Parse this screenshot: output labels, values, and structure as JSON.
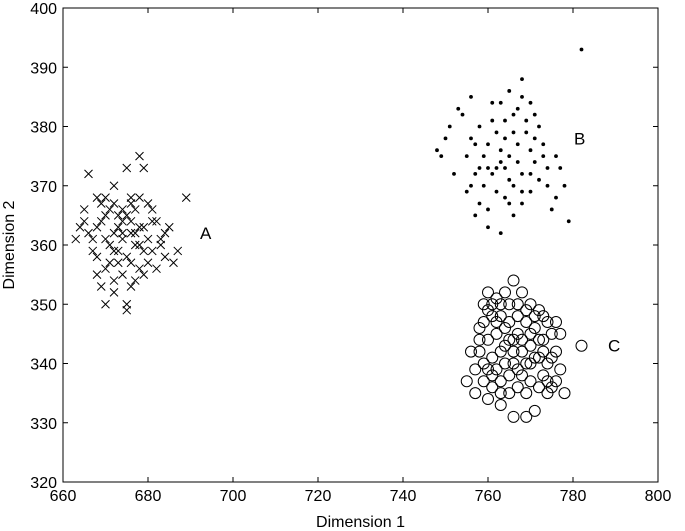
{
  "chart_data": {
    "type": "scatter",
    "title": "",
    "xlabel": "Dimension 1",
    "ylabel": "Dimension 2",
    "xlim": [
      660,
      800
    ],
    "ylim": [
      320,
      400
    ],
    "xticks": [
      660,
      680,
      700,
      720,
      740,
      760,
      780,
      800
    ],
    "yticks": [
      320,
      330,
      340,
      350,
      360,
      370,
      380,
      390,
      400
    ],
    "grid": false,
    "legend": "none",
    "annotations": [
      {
        "text": "A",
        "x": 692,
        "y": 362
      },
      {
        "text": "B",
        "x": 780,
        "y": 378
      },
      {
        "text": "C",
        "x": 788,
        "y": 343
      }
    ],
    "series": [
      {
        "marker": "x",
        "points": [
          [
            689,
            368
          ],
          [
            682,
            364
          ],
          [
            683,
            361
          ],
          [
            686,
            357
          ],
          [
            687,
            359
          ],
          [
            685,
            363
          ],
          [
            681,
            366
          ],
          [
            679,
            373
          ],
          [
            678,
            375
          ],
          [
            676,
            368
          ],
          [
            675,
            373
          ],
          [
            672,
            370
          ],
          [
            666,
            372
          ],
          [
            668,
            368
          ],
          [
            669,
            367
          ],
          [
            664,
            363
          ],
          [
            665,
            364
          ],
          [
            663,
            361
          ],
          [
            667,
            359
          ],
          [
            668,
            355
          ],
          [
            669,
            353
          ],
          [
            670,
            350
          ],
          [
            672,
            352
          ],
          [
            675,
            350
          ],
          [
            676,
            353
          ],
          [
            671,
            357
          ],
          [
            673,
            359
          ],
          [
            674,
            361
          ],
          [
            676,
            362
          ],
          [
            678,
            363
          ],
          [
            680,
            361
          ],
          [
            679,
            359
          ],
          [
            677,
            360
          ],
          [
            675,
            358
          ],
          [
            673,
            357
          ],
          [
            672,
            362
          ],
          [
            670,
            365
          ],
          [
            671,
            366
          ],
          [
            674,
            364
          ],
          [
            677,
            366
          ],
          [
            678,
            368
          ],
          [
            680,
            367
          ],
          [
            681,
            364
          ],
          [
            683,
            360
          ],
          [
            684,
            358
          ],
          [
            682,
            356
          ],
          [
            680,
            357
          ],
          [
            678,
            356
          ],
          [
            676,
            357
          ],
          [
            674,
            355
          ],
          [
            672,
            354
          ],
          [
            670,
            356
          ],
          [
            668,
            358
          ],
          [
            667,
            361
          ],
          [
            668,
            363
          ],
          [
            669,
            364
          ],
          [
            670,
            368
          ],
          [
            672,
            367
          ],
          [
            675,
            365
          ],
          [
            676,
            364
          ],
          [
            678,
            360
          ],
          [
            679,
            363
          ],
          [
            674,
            362
          ],
          [
            673,
            365
          ],
          [
            671,
            360
          ],
          [
            677,
            354
          ],
          [
            675,
            349
          ],
          [
            666,
            362
          ],
          [
            665,
            366
          ],
          [
            684,
            362
          ],
          [
            681,
            359
          ],
          [
            679,
            355
          ],
          [
            670,
            361
          ],
          [
            673,
            363
          ],
          [
            676,
            367
          ],
          [
            672,
            359
          ],
          [
            677,
            362
          ],
          [
            674,
            366
          ]
        ]
      },
      {
        "marker": "dot",
        "points": [
          [
            782,
            393
          ],
          [
            768,
            388
          ],
          [
            765,
            386
          ],
          [
            761,
            384
          ],
          [
            756,
            385
          ],
          [
            753,
            383
          ],
          [
            751,
            380
          ],
          [
            749,
            375
          ],
          [
            748,
            376
          ],
          [
            752,
            372
          ],
          [
            755,
            369
          ],
          [
            757,
            365
          ],
          [
            760,
            363
          ],
          [
            763,
            362
          ],
          [
            766,
            365
          ],
          [
            768,
            367
          ],
          [
            770,
            369
          ],
          [
            772,
            371
          ],
          [
            774,
            370
          ],
          [
            776,
            375
          ],
          [
            777,
            373
          ],
          [
            776,
            368
          ],
          [
            775,
            366
          ],
          [
            779,
            364
          ],
          [
            778,
            370
          ],
          [
            772,
            380
          ],
          [
            770,
            384
          ],
          [
            768,
            385
          ],
          [
            766,
            382
          ],
          [
            764,
            381
          ],
          [
            762,
            379
          ],
          [
            760,
            377
          ],
          [
            758,
            380
          ],
          [
            756,
            378
          ],
          [
            755,
            375
          ],
          [
            757,
            372
          ],
          [
            759,
            370
          ],
          [
            761,
            372
          ],
          [
            763,
            374
          ],
          [
            765,
            375
          ],
          [
            767,
            377
          ],
          [
            769,
            379
          ],
          [
            770,
            376
          ],
          [
            771,
            374
          ],
          [
            768,
            372
          ],
          [
            766,
            370
          ],
          [
            764,
            368
          ],
          [
            762,
            369
          ],
          [
            760,
            366
          ],
          [
            758,
            367
          ],
          [
            761,
            381
          ],
          [
            764,
            378
          ],
          [
            767,
            374
          ],
          [
            765,
            371
          ],
          [
            763,
            376
          ],
          [
            759,
            375
          ],
          [
            762,
            373
          ],
          [
            766,
            379
          ],
          [
            769,
            381
          ],
          [
            771,
            378
          ],
          [
            773,
            377
          ],
          [
            774,
            373
          ],
          [
            770,
            372
          ],
          [
            768,
            369
          ],
          [
            765,
            367
          ],
          [
            760,
            373
          ],
          [
            757,
            377
          ],
          [
            754,
            382
          ],
          [
            750,
            378
          ],
          [
            767,
            383
          ],
          [
            763,
            384
          ],
          [
            771,
            382
          ],
          [
            773,
            375
          ],
          [
            758,
            373
          ],
          [
            756,
            370
          ],
          [
            764,
            373
          ]
        ]
      },
      {
        "marker": "circle",
        "points": [
          [
            782,
            343
          ],
          [
            778,
            335
          ],
          [
            775,
            336
          ],
          [
            773,
            338
          ],
          [
            770,
            340
          ],
          [
            768,
            342
          ],
          [
            766,
            344
          ],
          [
            764,
            346
          ],
          [
            762,
            347
          ],
          [
            760,
            349
          ],
          [
            758,
            346
          ],
          [
            756,
            342
          ],
          [
            755,
            337
          ],
          [
            757,
            335
          ],
          [
            760,
            334
          ],
          [
            763,
            333
          ],
          [
            766,
            331
          ],
          [
            769,
            331
          ],
          [
            771,
            332
          ],
          [
            774,
            335
          ],
          [
            776,
            337
          ],
          [
            777,
            339
          ],
          [
            776,
            342
          ],
          [
            775,
            345
          ],
          [
            774,
            347
          ],
          [
            772,
            349
          ],
          [
            770,
            350
          ],
          [
            768,
            352
          ],
          [
            766,
            354
          ],
          [
            764,
            352
          ],
          [
            762,
            351
          ],
          [
            760,
            352
          ],
          [
            759,
            350
          ],
          [
            761,
            348
          ],
          [
            763,
            348
          ],
          [
            765,
            347
          ],
          [
            767,
            348
          ],
          [
            769,
            347
          ],
          [
            771,
            346
          ],
          [
            772,
            344
          ],
          [
            773,
            342
          ],
          [
            771,
            341
          ],
          [
            769,
            340
          ],
          [
            767,
            339
          ],
          [
            765,
            338
          ],
          [
            763,
            337
          ],
          [
            761,
            338
          ],
          [
            759,
            340
          ],
          [
            758,
            342
          ],
          [
            760,
            344
          ],
          [
            762,
            345
          ],
          [
            764,
            343
          ],
          [
            766,
            342
          ],
          [
            768,
            344
          ],
          [
            770,
            343
          ],
          [
            772,
            341
          ],
          [
            774,
            340
          ],
          [
            775,
            341
          ],
          [
            773,
            344
          ],
          [
            770,
            345
          ],
          [
            767,
            345
          ],
          [
            765,
            344
          ],
          [
            763,
            342
          ],
          [
            761,
            341
          ],
          [
            760,
            339
          ],
          [
            762,
            339
          ],
          [
            764,
            340
          ],
          [
            766,
            340
          ],
          [
            768,
            338
          ],
          [
            770,
            337
          ],
          [
            772,
            336
          ],
          [
            774,
            337
          ],
          [
            769,
            335
          ],
          [
            767,
            336
          ],
          [
            765,
            335
          ],
          [
            763,
            335
          ],
          [
            761,
            336
          ],
          [
            759,
            337
          ],
          [
            757,
            339
          ],
          [
            758,
            344
          ],
          [
            759,
            347
          ],
          [
            761,
            350
          ],
          [
            763,
            350
          ],
          [
            765,
            350
          ],
          [
            767,
            350
          ],
          [
            769,
            349
          ],
          [
            771,
            348
          ],
          [
            773,
            348
          ],
          [
            776,
            347
          ],
          [
            777,
            345
          ]
        ]
      }
    ]
  }
}
